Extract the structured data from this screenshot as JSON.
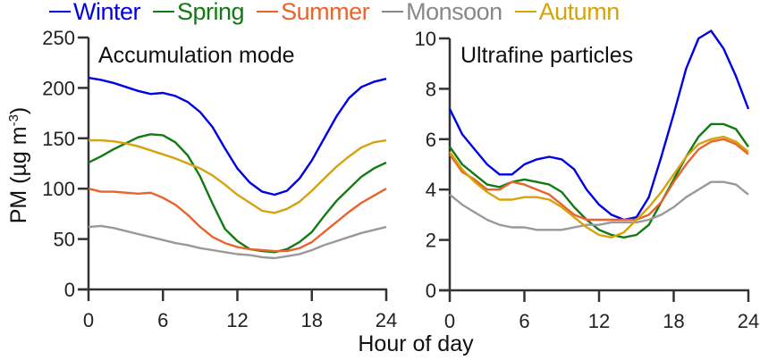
{
  "chart_data": [
    {
      "type": "line",
      "title": "Accumulation mode",
      "xlabel": "Hour of day",
      "ylabel": "PM (µg m-3)",
      "xlim": [
        0,
        24
      ],
      "ylim": [
        0,
        250
      ],
      "xticks": [
        0,
        6,
        12,
        18,
        24
      ],
      "yticks": [
        0,
        50,
        100,
        150,
        200,
        250
      ],
      "grid": false,
      "x": [
        0,
        1,
        2,
        3,
        4,
        5,
        6,
        7,
        8,
        9,
        10,
        11,
        12,
        13,
        14,
        15,
        16,
        17,
        18,
        19,
        20,
        21,
        22,
        23,
        24
      ],
      "series": [
        {
          "name": "Winter",
          "color": "#0000e6",
          "values": [
            210,
            208,
            205,
            201,
            197,
            194,
            195,
            192,
            186,
            176,
            161,
            140,
            120,
            106,
            97,
            94,
            98,
            110,
            128,
            150,
            172,
            190,
            201,
            206,
            209
          ]
        },
        {
          "name": "Spring",
          "color": "#127a12",
          "values": [
            126,
            132,
            139,
            145,
            151,
            154,
            153,
            146,
            133,
            112,
            85,
            60,
            48,
            40,
            38,
            37,
            40,
            47,
            57,
            73,
            88,
            100,
            112,
            120,
            126
          ]
        },
        {
          "name": "Summer",
          "color": "#e8642c",
          "values": [
            100,
            97,
            97,
            96,
            95,
            96,
            91,
            84,
            74,
            62,
            52,
            46,
            42,
            40,
            39,
            38,
            38,
            41,
            47,
            57,
            67,
            77,
            86,
            93,
            100
          ]
        },
        {
          "name": "Monsoon",
          "color": "#999999",
          "values": [
            62,
            63,
            61,
            58,
            55,
            52,
            49,
            46,
            44,
            41,
            39,
            37,
            35,
            34,
            32,
            31,
            33,
            35,
            39,
            44,
            48,
            52,
            56,
            59,
            62
          ]
        },
        {
          "name": "Autumn",
          "color": "#d6a20e",
          "values": [
            148,
            148,
            147,
            145,
            142,
            138,
            134,
            130,
            125,
            120,
            113,
            104,
            94,
            86,
            78,
            76,
            80,
            87,
            98,
            110,
            122,
            132,
            141,
            146,
            148
          ]
        }
      ]
    },
    {
      "type": "line",
      "title": "Ultrafine particles",
      "xlabel": "Hour of day",
      "ylabel": "PM (µg m-3)",
      "xlim": [
        0,
        24
      ],
      "ylim": [
        0,
        10
      ],
      "xticks": [
        0,
        6,
        12,
        18,
        24
      ],
      "yticks": [
        0,
        2,
        4,
        6,
        8,
        10
      ],
      "grid": false,
      "x": [
        0,
        1,
        2,
        3,
        4,
        5,
        6,
        7,
        8,
        9,
        10,
        11,
        12,
        13,
        14,
        15,
        16,
        17,
        18,
        19,
        20,
        21,
        22,
        23,
        24
      ],
      "series": [
        {
          "name": "Winter",
          "color": "#0000e6",
          "values": [
            7.2,
            6.2,
            5.6,
            5.0,
            4.6,
            4.6,
            5.0,
            5.2,
            5.3,
            5.2,
            4.8,
            4.0,
            3.4,
            3.0,
            2.8,
            2.9,
            3.7,
            5.3,
            7.0,
            8.8,
            10.0,
            10.3,
            9.6,
            8.5,
            7.2
          ]
        },
        {
          "name": "Spring",
          "color": "#127a12",
          "values": [
            5.7,
            5.0,
            4.6,
            4.2,
            4.1,
            4.3,
            4.4,
            4.3,
            4.2,
            3.9,
            3.3,
            2.8,
            2.4,
            2.2,
            2.1,
            2.2,
            2.6,
            3.5,
            4.4,
            5.3,
            6.1,
            6.6,
            6.6,
            6.4,
            5.7
          ]
        },
        {
          "name": "Summer",
          "color": "#e8642c",
          "values": [
            5.4,
            4.7,
            4.4,
            4.0,
            4.0,
            4.3,
            4.2,
            4.0,
            3.8,
            3.4,
            3.0,
            2.8,
            2.8,
            2.8,
            2.8,
            2.8,
            3.0,
            3.5,
            4.3,
            5.0,
            5.6,
            5.9,
            6.0,
            5.8,
            5.4
          ]
        },
        {
          "name": "Monsoon",
          "color": "#999999",
          "values": [
            3.8,
            3.4,
            3.1,
            2.8,
            2.6,
            2.5,
            2.5,
            2.4,
            2.4,
            2.4,
            2.5,
            2.6,
            2.6,
            2.7,
            2.7,
            2.7,
            2.8,
            3.0,
            3.3,
            3.7,
            4.0,
            4.3,
            4.3,
            4.2,
            3.8
          ]
        },
        {
          "name": "Autumn",
          "color": "#d6a20e",
          "values": [
            5.5,
            4.8,
            4.3,
            3.9,
            3.6,
            3.6,
            3.7,
            3.7,
            3.6,
            3.3,
            2.9,
            2.5,
            2.2,
            2.1,
            2.3,
            2.8,
            3.3,
            3.9,
            4.6,
            5.3,
            5.8,
            6.0,
            6.1,
            5.9,
            5.5
          ]
        }
      ]
    }
  ],
  "legend": {
    "placement": "top",
    "items": [
      {
        "name": "Winter",
        "color": "#0000e6"
      },
      {
        "name": "Spring",
        "color": "#127a12"
      },
      {
        "name": "Summer",
        "color": "#e8642c"
      },
      {
        "name": "Monsoon",
        "color": "#888888"
      },
      {
        "name": "Autumn",
        "color": "#d6a20e"
      }
    ]
  },
  "ylabel_parts": {
    "main": "PM (µg m",
    "sup": "-3",
    "end": ")"
  },
  "xlabel": "Hour of day"
}
